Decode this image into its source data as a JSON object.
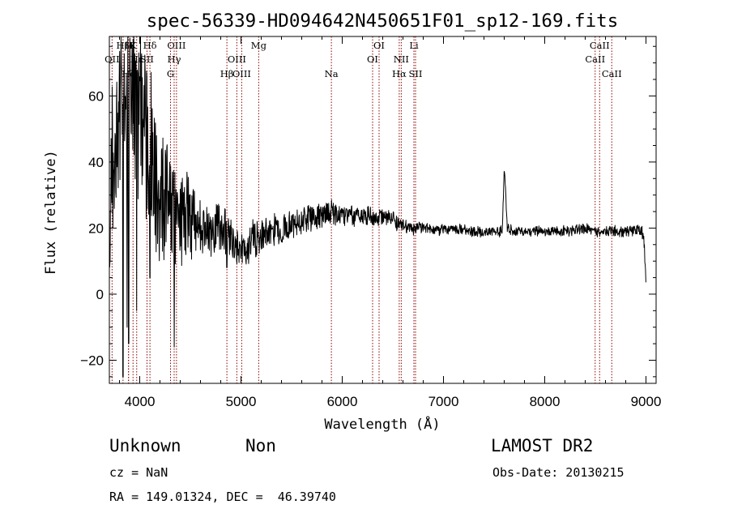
{
  "chart_data": {
    "type": "line",
    "title": "spec-56339-HD094642N450651F01_sp12-169.fits",
    "xlabel": "Wavelength (Å)",
    "ylabel": "Flux (relative)",
    "xlim": [
      3700,
      9100
    ],
    "ylim": [
      -27,
      78
    ],
    "x_ticks": [
      4000,
      5000,
      6000,
      7000,
      8000,
      9000
    ],
    "y_ticks": [
      -20,
      0,
      20,
      40,
      60
    ],
    "grid": false,
    "line_color": "#000000",
    "marker_color": "#8b0000",
    "anchors": [
      [
        3700,
        5
      ],
      [
        3720,
        40
      ],
      [
        3760,
        45
      ],
      [
        3800,
        52
      ],
      [
        3850,
        58
      ],
      [
        3900,
        60
      ],
      [
        3950,
        57
      ],
      [
        4000,
        53
      ],
      [
        4050,
        48
      ],
      [
        4100,
        42
      ],
      [
        4150,
        36
      ],
      [
        4200,
        32
      ],
      [
        4300,
        27
      ],
      [
        4400,
        24
      ],
      [
        4500,
        22
      ],
      [
        4600,
        21
      ],
      [
        4700,
        20.5
      ],
      [
        4800,
        20
      ],
      [
        4900,
        19
      ],
      [
        5000,
        13
      ],
      [
        5100,
        16
      ],
      [
        5200,
        18
      ],
      [
        5300,
        19
      ],
      [
        5400,
        20
      ],
      [
        5500,
        21
      ],
      [
        5600,
        22
      ],
      [
        5700,
        23
      ],
      [
        5800,
        24
      ],
      [
        5900,
        24.5
      ],
      [
        6000,
        24
      ],
      [
        6100,
        24
      ],
      [
        6200,
        23.5
      ],
      [
        6300,
        23.5
      ],
      [
        6400,
        23
      ],
      [
        6500,
        23
      ],
      [
        6550,
        21
      ],
      [
        6600,
        20.5
      ],
      [
        6700,
        20
      ],
      [
        6800,
        20
      ],
      [
        6900,
        19.5
      ],
      [
        7000,
        19.5
      ],
      [
        7100,
        19.5
      ],
      [
        7200,
        19.5
      ],
      [
        7300,
        19
      ],
      [
        7400,
        19
      ],
      [
        7500,
        19
      ],
      [
        7580,
        19
      ],
      [
        7600,
        37
      ],
      [
        7610,
        33
      ],
      [
        7630,
        20
      ],
      [
        7700,
        19
      ],
      [
        7800,
        19
      ],
      [
        7900,
        19
      ],
      [
        8000,
        19
      ],
      [
        8100,
        19
      ],
      [
        8200,
        19
      ],
      [
        8300,
        19.5
      ],
      [
        8400,
        20
      ],
      [
        8500,
        19
      ],
      [
        8600,
        19
      ],
      [
        8700,
        19
      ],
      [
        8800,
        19
      ],
      [
        8900,
        19.5
      ],
      [
        8960,
        19
      ],
      [
        8980,
        16
      ],
      [
        9000,
        4
      ]
    ],
    "noise": [
      [
        3700,
        20
      ],
      [
        4000,
        24
      ],
      [
        4300,
        16
      ],
      [
        4600,
        9
      ],
      [
        5000,
        6
      ],
      [
        5500,
        4
      ],
      [
        6000,
        3
      ],
      [
        6500,
        2
      ],
      [
        7000,
        1.4
      ],
      [
        8000,
        1.4
      ],
      [
        9000,
        1.6
      ]
    ],
    "absorption_dips": [
      {
        "x": 3835,
        "y": -25
      },
      {
        "x": 3875,
        "y": -10
      },
      {
        "x": 3890,
        "y": -15
      },
      {
        "x": 3970,
        "y": -5
      },
      {
        "x": 4101,
        "y": 5
      },
      {
        "x": 4340,
        "y": -16
      },
      {
        "x": 4861,
        "y": 8
      }
    ],
    "line_markers": [
      {
        "label": "Hβ",
        "x": 3835,
        "tier": 0
      },
      {
        "label": "H",
        "x": 3890,
        "tier": 0
      },
      {
        "label": "K",
        "x": 3934,
        "tier": 0
      },
      {
        "label": "Hδ",
        "x": 4101,
        "tier": 0
      },
      {
        "label": "OIII",
        "x": 4363,
        "tier": 0
      },
      {
        "label": "Mg",
        "x": 5175,
        "tier": 0
      },
      {
        "label": "OI",
        "x": 6364,
        "tier": 0
      },
      {
        "label": "Li",
        "x": 6708,
        "tier": 0
      },
      {
        "label": "CaII",
        "x": 8542,
        "tier": 0
      },
      {
        "label": "OII",
        "x": 3727,
        "tier": 1
      },
      {
        "label": "Hε",
        "x": 3970,
        "tier": 1
      },
      {
        "label": "SII",
        "x": 4072,
        "tier": 1
      },
      {
        "label": "Hγ",
        "x": 4340,
        "tier": 1
      },
      {
        "label": "OIII",
        "x": 4959,
        "tier": 1
      },
      {
        "label": "OI",
        "x": 6300,
        "tier": 1
      },
      {
        "label": "NII",
        "x": 6583,
        "tier": 1
      },
      {
        "label": "CaII",
        "x": 8498,
        "tier": 1
      },
      {
        "label": "Hζ",
        "x": 3889,
        "tier": 2
      },
      {
        "label": "G",
        "x": 4304,
        "tier": 2
      },
      {
        "label": "Hβ",
        "x": 4861,
        "tier": 2
      },
      {
        "label": "OIII",
        "x": 5007,
        "tier": 2
      },
      {
        "label": "Na",
        "x": 5893,
        "tier": 2
      },
      {
        "label": "Hα",
        "x": 6563,
        "tier": 2
      },
      {
        "label": "SII",
        "x": 6724,
        "tier": 2
      },
      {
        "label": "CaII",
        "x": 8662,
        "tier": 2
      }
    ]
  },
  "footer": {
    "object_class": "Unknown",
    "subclass": "Non",
    "survey": "LAMOST DR2",
    "redshift": "cz = NaN",
    "obs_date": "Obs-Date: 20130215",
    "coords": "RA = 149.01324, DEC =  46.39740"
  }
}
